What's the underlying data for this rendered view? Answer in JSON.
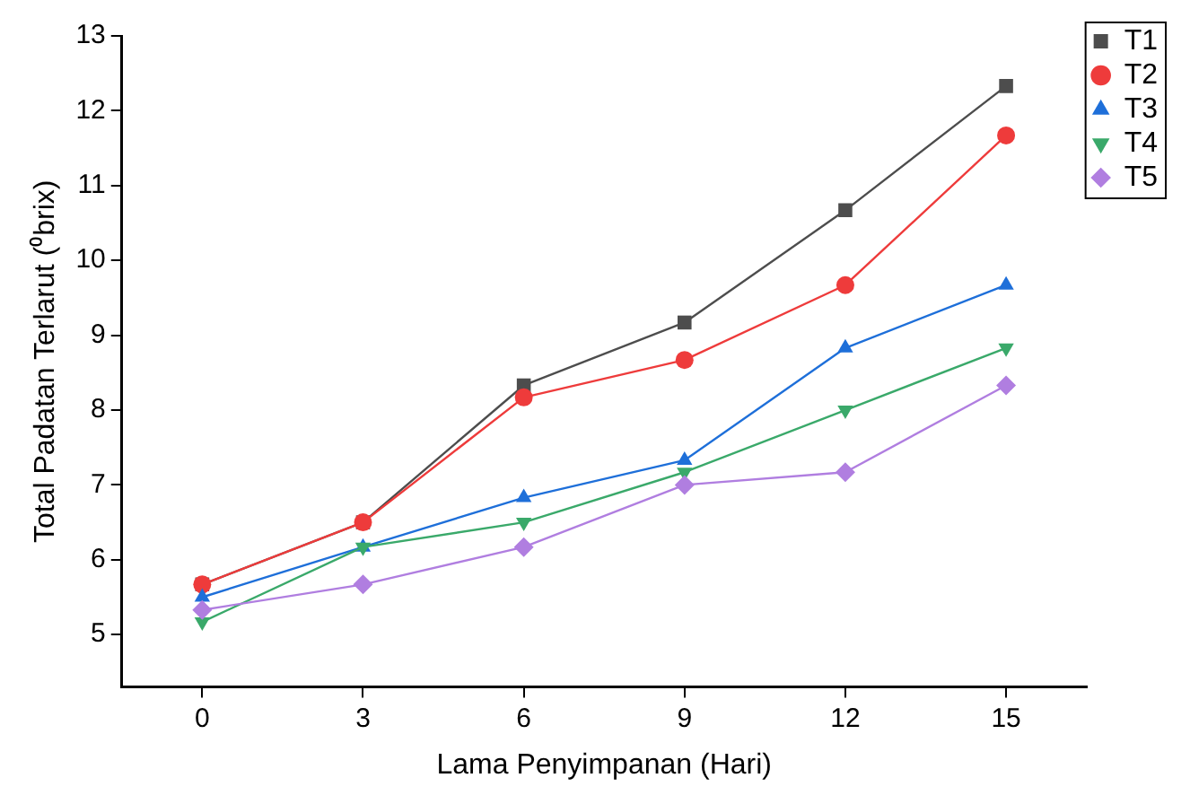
{
  "chart_data": {
    "type": "line",
    "xlabel": "Lama Penyimpanan (Hari)",
    "ylabel": "Total Padatan Terlarut (⁰brix)",
    "x": [
      0,
      3,
      6,
      9,
      12,
      15
    ],
    "xlim": [
      -1.5,
      16.5
    ],
    "xticks": [
      0,
      3,
      6,
      9,
      12,
      15
    ],
    "ylim": [
      4.3,
      13
    ],
    "yticks": [
      5,
      6,
      7,
      8,
      9,
      10,
      11,
      12,
      13
    ],
    "grid": false,
    "legend": "top right",
    "line_style": "solid",
    "series": [
      {
        "name": "T1",
        "color": "#4d4d4d",
        "marker": "square",
        "values": [
          5.67,
          6.5,
          8.33,
          9.17,
          10.67,
          12.33
        ]
      },
      {
        "name": "T2",
        "color": "#ee3b3b",
        "marker": "circle",
        "values": [
          5.67,
          6.5,
          8.17,
          8.67,
          9.67,
          11.67
        ]
      },
      {
        "name": "T3",
        "color": "#1e6fd9",
        "marker": "triangle",
        "values": [
          5.5,
          6.17,
          6.83,
          7.33,
          8.83,
          9.67
        ]
      },
      {
        "name": "T4",
        "color": "#3aa96a",
        "marker": "triangle-down",
        "values": [
          5.17,
          6.17,
          6.5,
          7.17,
          8.0,
          8.83
        ]
      },
      {
        "name": "T5",
        "color": "#b07ee0",
        "marker": "diamond",
        "values": [
          5.33,
          5.67,
          6.17,
          7.0,
          7.17,
          8.33
        ]
      }
    ]
  }
}
